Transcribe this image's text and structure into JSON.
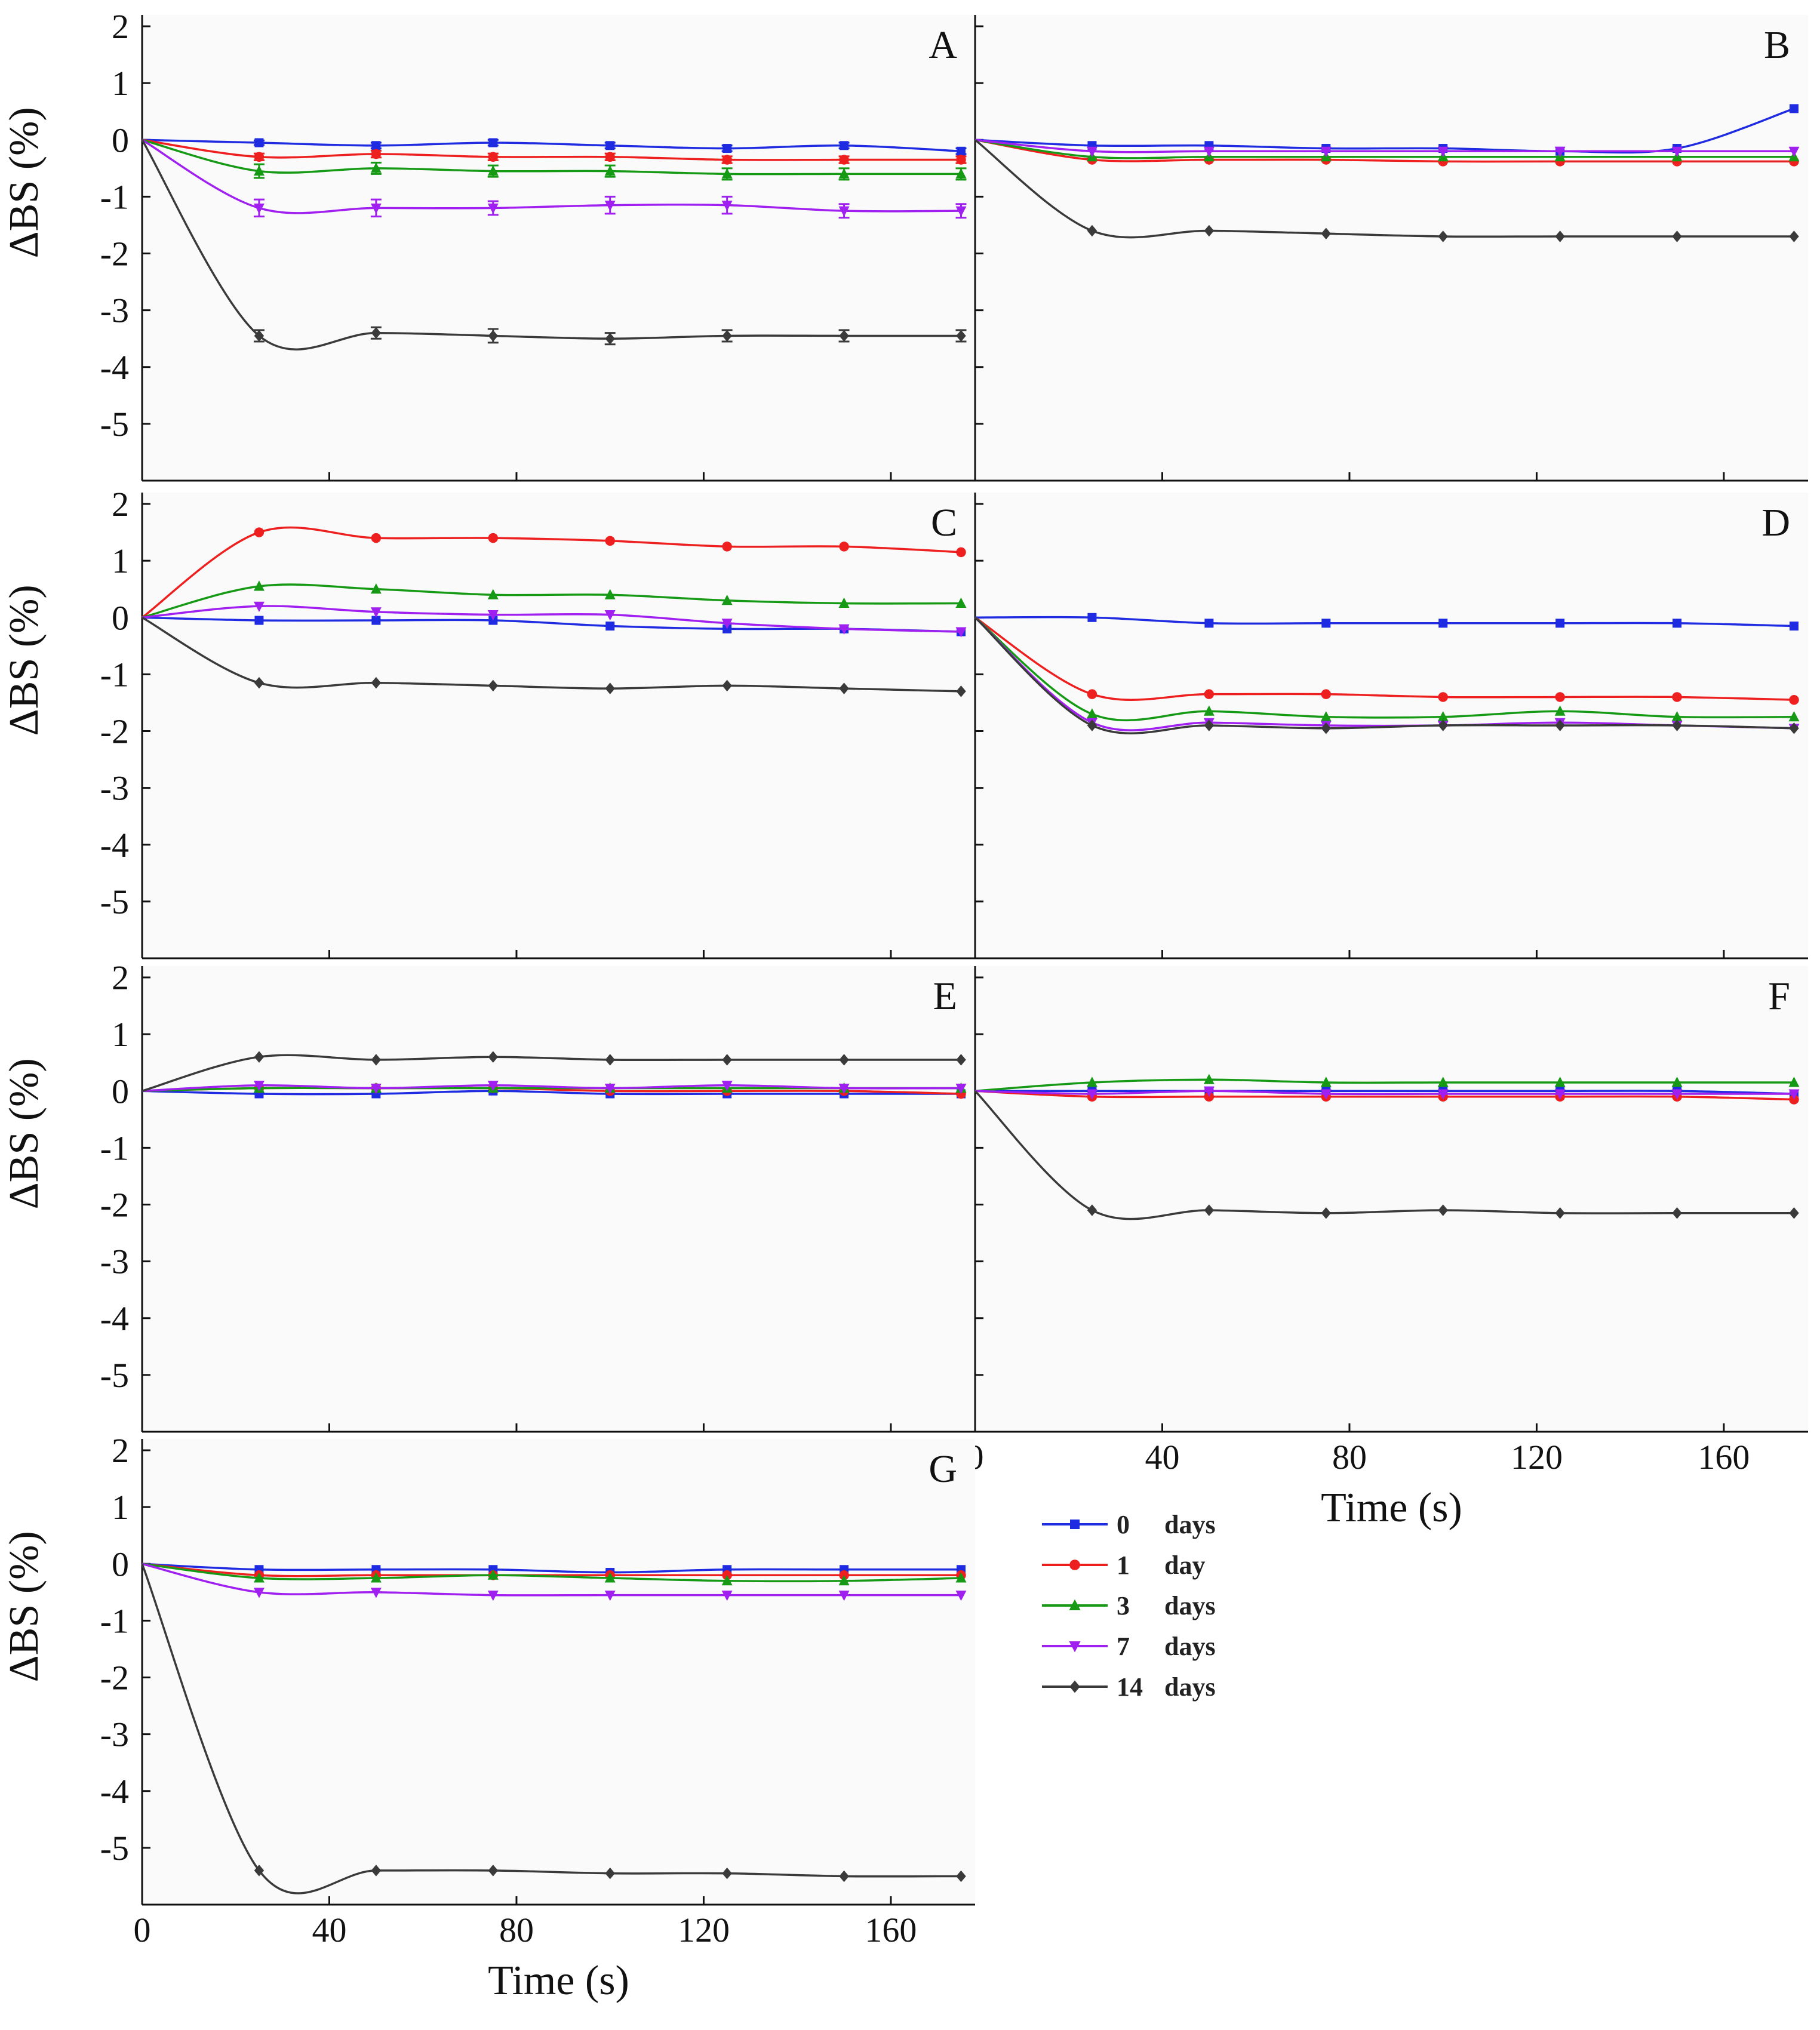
{
  "chart_data": {
    "type": "line",
    "x": [
      0,
      25,
      50,
      75,
      100,
      125,
      150,
      175
    ],
    "xlim": [
      0,
      178
    ],
    "ylim": [
      -6,
      2.2
    ],
    "yticks": [
      2,
      1,
      0,
      -1,
      -2,
      -3,
      -4,
      -5
    ],
    "ytick_labels": [
      "2",
      "1",
      "0",
      "-1",
      "-2",
      "-3",
      "-4",
      "-5"
    ],
    "xticks": [
      0,
      40,
      80,
      120,
      160
    ],
    "xtick_labels": [
      "0",
      "40",
      "80",
      "120",
      "160"
    ],
    "ylabel": "ΔBS (%)",
    "xlabel": "Time (s)",
    "series_styles": [
      {
        "name": "0",
        "unit": "days",
        "color": "#1f2be0",
        "marker": "square"
      },
      {
        "name": "1",
        "unit": "day",
        "color": "#ee1f1f",
        "marker": "circle"
      },
      {
        "name": "3",
        "unit": "days",
        "color": "#169a16",
        "marker": "triangle-up"
      },
      {
        "name": "7",
        "unit": "days",
        "color": "#a020f0",
        "marker": "triangle-down"
      },
      {
        "name": "14",
        "unit": "days",
        "color": "#3a3a3a",
        "marker": "diamond"
      }
    ],
    "panels": [
      {
        "label": "A",
        "error_bars": true,
        "series": [
          {
            "name": "0 days",
            "values": [
              0,
              -0.05,
              -0.1,
              -0.05,
              -0.1,
              -0.15,
              -0.1,
              -0.2
            ],
            "err": [
              0,
              0.04,
              0.05,
              0.05,
              0.05,
              0.05,
              0.05,
              0.05
            ]
          },
          {
            "name": "1 day",
            "values": [
              0,
              -0.3,
              -0.25,
              -0.3,
              -0.3,
              -0.35,
              -0.35,
              -0.35
            ],
            "err": [
              0,
              0.06,
              0.06,
              0.06,
              0.06,
              0.06,
              0.06,
              0.06
            ]
          },
          {
            "name": "3 days",
            "values": [
              0,
              -0.55,
              -0.5,
              -0.55,
              -0.55,
              -0.6,
              -0.6,
              -0.6
            ],
            "err": [
              0,
              0.12,
              0.1,
              0.1,
              0.1,
              0.1,
              0.1,
              0.1
            ]
          },
          {
            "name": "7 days",
            "values": [
              0,
              -1.2,
              -1.2,
              -1.2,
              -1.15,
              -1.15,
              -1.25,
              -1.25
            ],
            "err": [
              0,
              0.15,
              0.15,
              0.12,
              0.15,
              0.15,
              0.12,
              0.12
            ]
          },
          {
            "name": "14 days",
            "values": [
              0,
              -3.45,
              -3.4,
              -3.45,
              -3.5,
              -3.45,
              -3.45,
              -3.45
            ],
            "err": [
              0,
              0.1,
              0.1,
              0.12,
              0.1,
              0.1,
              0.1,
              0.1
            ]
          }
        ]
      },
      {
        "label": "B",
        "error_bars": false,
        "series": [
          {
            "name": "0 days",
            "values": [
              0,
              -0.1,
              -0.1,
              -0.15,
              -0.15,
              -0.2,
              -0.15,
              0.55
            ]
          },
          {
            "name": "1 day",
            "values": [
              0,
              -0.35,
              -0.35,
              -0.35,
              -0.38,
              -0.38,
              -0.38,
              -0.38
            ]
          },
          {
            "name": "3 days",
            "values": [
              0,
              -0.3,
              -0.3,
              -0.3,
              -0.3,
              -0.3,
              -0.3,
              -0.3
            ]
          },
          {
            "name": "7 days",
            "values": [
              0,
              -0.2,
              -0.2,
              -0.2,
              -0.2,
              -0.2,
              -0.2,
              -0.2
            ]
          },
          {
            "name": "14 days",
            "values": [
              0,
              -1.6,
              -1.6,
              -1.65,
              -1.7,
              -1.7,
              -1.7,
              -1.7
            ]
          }
        ]
      },
      {
        "label": "C",
        "error_bars": false,
        "series": [
          {
            "name": "0 days",
            "values": [
              0,
              -0.05,
              -0.05,
              -0.05,
              -0.15,
              -0.2,
              -0.2,
              -0.25
            ]
          },
          {
            "name": "1 day",
            "values": [
              0,
              1.5,
              1.4,
              1.4,
              1.35,
              1.25,
              1.25,
              1.15
            ]
          },
          {
            "name": "3 days",
            "values": [
              0,
              0.55,
              0.5,
              0.4,
              0.4,
              0.3,
              0.25,
              0.25
            ]
          },
          {
            "name": "7 days",
            "values": [
              0,
              0.2,
              0.1,
              0.05,
              0.05,
              -0.1,
              -0.2,
              -0.25
            ]
          },
          {
            "name": "14 days",
            "values": [
              0,
              -1.15,
              -1.15,
              -1.2,
              -1.25,
              -1.2,
              -1.25,
              -1.3
            ]
          }
        ]
      },
      {
        "label": "D",
        "error_bars": false,
        "series": [
          {
            "name": "0 days",
            "values": [
              0,
              0,
              -0.1,
              -0.1,
              -0.1,
              -0.1,
              -0.1,
              -0.15
            ]
          },
          {
            "name": "1 day",
            "values": [
              0,
              -1.35,
              -1.35,
              -1.35,
              -1.4,
              -1.4,
              -1.4,
              -1.45
            ]
          },
          {
            "name": "3 days",
            "values": [
              0,
              -1.7,
              -1.65,
              -1.75,
              -1.75,
              -1.65,
              -1.75,
              -1.75
            ]
          },
          {
            "name": "7 days",
            "values": [
              0,
              -1.85,
              -1.85,
              -1.9,
              -1.9,
              -1.85,
              -1.9,
              -1.95
            ]
          },
          {
            "name": "14 days",
            "values": [
              0,
              -1.9,
              -1.9,
              -1.95,
              -1.9,
              -1.9,
              -1.9,
              -1.95
            ]
          }
        ]
      },
      {
        "label": "E",
        "error_bars": false,
        "series": [
          {
            "name": "0 days",
            "values": [
              0,
              -0.05,
              -0.05,
              0,
              -0.05,
              -0.05,
              -0.05,
              -0.05
            ]
          },
          {
            "name": "1 day",
            "values": [
              0,
              0.05,
              0.05,
              0.05,
              0,
              0,
              0,
              -0.05
            ]
          },
          {
            "name": "3 days",
            "values": [
              0,
              0.05,
              0.05,
              0.05,
              0.05,
              0.05,
              0.05,
              0.05
            ]
          },
          {
            "name": "7 days",
            "values": [
              0,
              0.1,
              0.05,
              0.1,
              0.05,
              0.1,
              0.05,
              0.05
            ]
          },
          {
            "name": "14 days",
            "values": [
              0,
              0.6,
              0.55,
              0.6,
              0.55,
              0.55,
              0.55,
              0.55
            ]
          }
        ]
      },
      {
        "label": "F",
        "error_bars": false,
        "series": [
          {
            "name": "0 days",
            "values": [
              0,
              0,
              0,
              0,
              0,
              0,
              0,
              -0.05
            ]
          },
          {
            "name": "1 day",
            "values": [
              0,
              -0.1,
              -0.1,
              -0.1,
              -0.1,
              -0.1,
              -0.1,
              -0.15
            ]
          },
          {
            "name": "3 days",
            "values": [
              0,
              0.15,
              0.2,
              0.15,
              0.15,
              0.15,
              0.15,
              0.15
            ]
          },
          {
            "name": "7 days",
            "values": [
              0,
              -0.05,
              0,
              -0.05,
              -0.05,
              -0.05,
              -0.05,
              -0.05
            ]
          },
          {
            "name": "14 days",
            "values": [
              0,
              -2.1,
              -2.1,
              -2.15,
              -2.1,
              -2.15,
              -2.15,
              -2.15
            ]
          }
        ]
      },
      {
        "label": "G",
        "error_bars": false,
        "series": [
          {
            "name": "0 days",
            "values": [
              0,
              -0.1,
              -0.1,
              -0.1,
              -0.15,
              -0.1,
              -0.1,
              -0.1
            ]
          },
          {
            "name": "1 day",
            "values": [
              0,
              -0.2,
              -0.2,
              -0.2,
              -0.2,
              -0.2,
              -0.2,
              -0.2
            ]
          },
          {
            "name": "3 days",
            "values": [
              0,
              -0.25,
              -0.25,
              -0.2,
              -0.25,
              -0.3,
              -0.3,
              -0.25
            ]
          },
          {
            "name": "7 days",
            "values": [
              0,
              -0.5,
              -0.5,
              -0.55,
              -0.55,
              -0.55,
              -0.55,
              -0.55
            ]
          },
          {
            "name": "14 days",
            "values": [
              0,
              -5.4,
              -5.4,
              -5.4,
              -5.45,
              -5.45,
              -5.5,
              -5.5
            ]
          }
        ]
      }
    ]
  }
}
